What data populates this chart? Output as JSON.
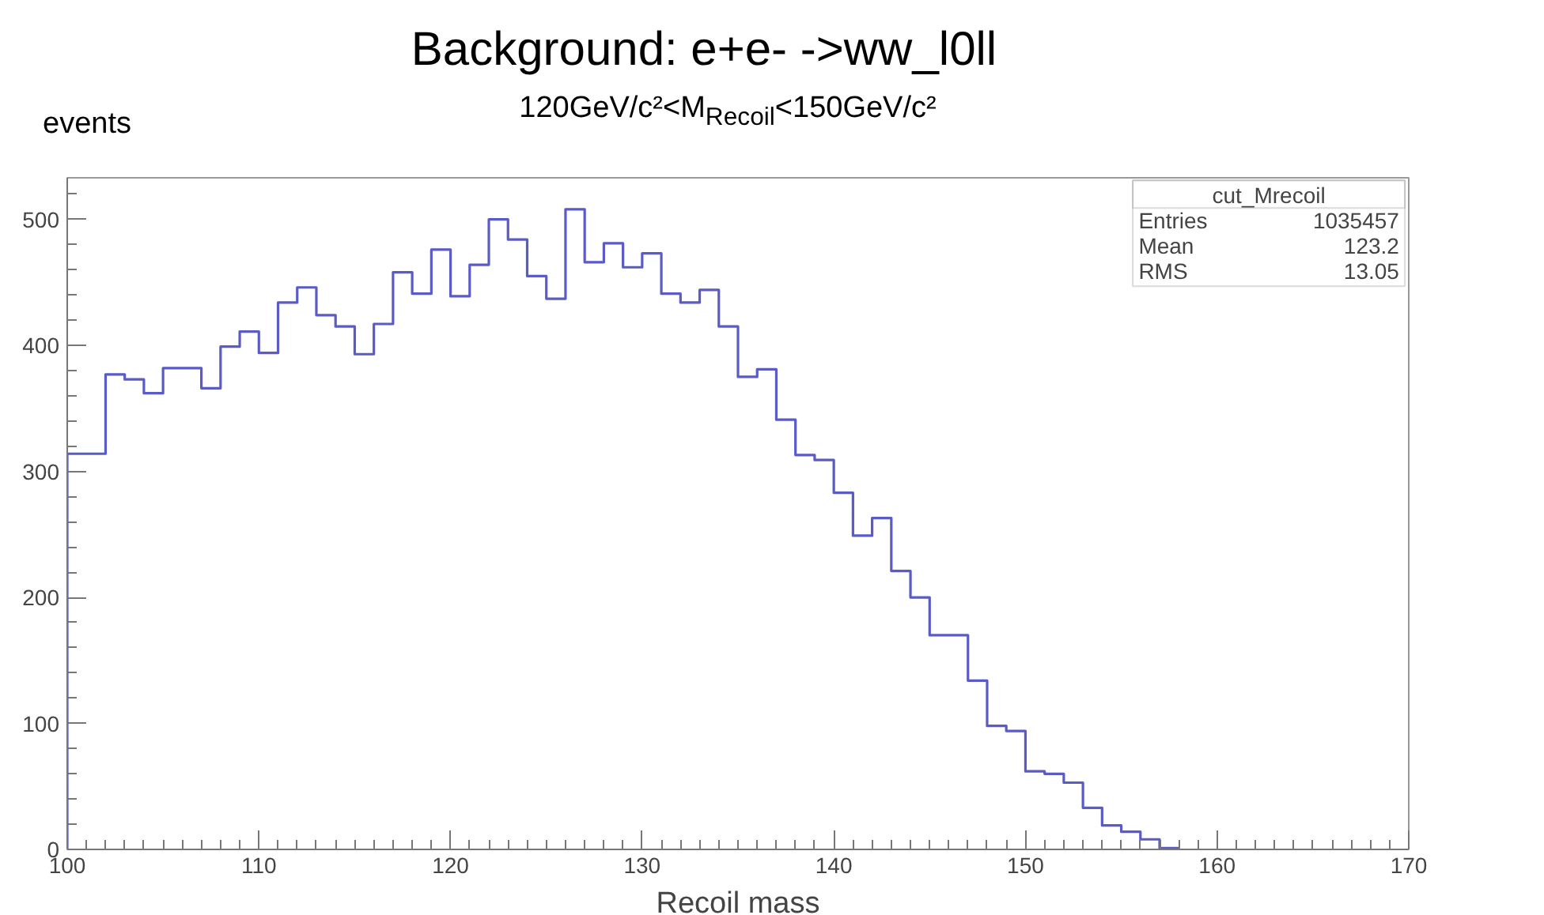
{
  "chart_data": {
    "type": "histogram",
    "title": "Background: e+e- ->ww_l0ll",
    "subtitle": "120GeV/c²<M$_{Recoil}$<150GeV/c²",
    "xlabel": "Recoil mass",
    "ylabel": "events",
    "bins": [
      100,
      101,
      102,
      103,
      104,
      105,
      106,
      107,
      108,
      109,
      110,
      111,
      112,
      113,
      114,
      115,
      116,
      117,
      118,
      119,
      120,
      121,
      122,
      123,
      124,
      125,
      126,
      127,
      128,
      129,
      130,
      131,
      132,
      133,
      134,
      135,
      136,
      137,
      138,
      139,
      140,
      141,
      142,
      143,
      144,
      145,
      146,
      147,
      148,
      149,
      150,
      151,
      152,
      153,
      154,
      155,
      156,
      157,
      158
    ],
    "values": [
      314,
      314,
      377,
      373,
      362,
      382,
      382,
      366,
      399,
      411,
      394,
      434,
      446,
      424,
      415,
      393,
      417,
      458,
      441,
      476,
      439,
      464,
      500,
      484,
      455,
      437,
      508,
      466,
      481,
      462,
      473,
      441,
      434,
      444,
      415,
      375,
      381,
      341,
      313,
      309,
      283,
      249,
      263,
      221,
      200,
      170,
      170,
      134,
      98,
      94,
      62,
      60,
      53,
      33,
      19,
      14,
      8,
      1
    ],
    "color": "#5b5bc8",
    "xlim": [
      100,
      170
    ],
    "ylim": [
      0,
      533
    ],
    "xticks": [
      100,
      110,
      120,
      130,
      140,
      150,
      160,
      170
    ],
    "yticks": [
      0,
      100,
      200,
      300,
      400,
      500
    ],
    "grid": false,
    "annotations": [
      "cut_Mrecoil",
      "Entries 1035457",
      "Mean 123.2",
      "RMS 13.05"
    ]
  }
}
